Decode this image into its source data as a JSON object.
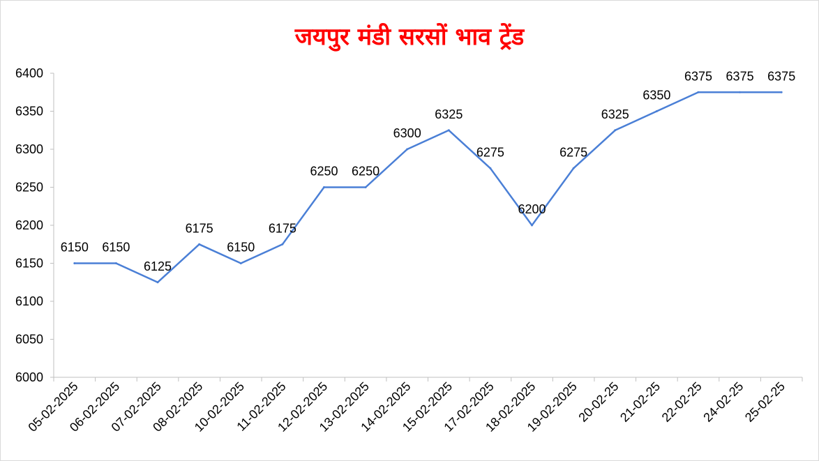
{
  "chart_data": {
    "type": "line",
    "title": "जयपुर मंडी सरसों भाव ट्रेंड",
    "xlabel": "",
    "ylabel": "",
    "ylim": [
      6000,
      6400
    ],
    "yticks": [
      6000,
      6050,
      6100,
      6150,
      6200,
      6250,
      6300,
      6350,
      6400
    ],
    "categories": [
      "05-02-2025",
      "06-02-2025",
      "07-02-2025",
      "08-02-2025",
      "10-02-2025",
      "11-02-2025",
      "12-02-2025",
      "13-02-2025",
      "14-02-2025",
      "15-02-2025",
      "17-02-2025",
      "18-02-2025",
      "19-02-2025",
      "20-02-25",
      "21-02-25",
      "22-02-25",
      "24-02-25",
      "25-02-25"
    ],
    "values": [
      6150,
      6150,
      6125,
      6175,
      6150,
      6175,
      6250,
      6250,
      6300,
      6325,
      6275,
      6200,
      6275,
      6325,
      6350,
      6375,
      6375,
      6375
    ],
    "data_labels": true,
    "grid": false,
    "legend": "none",
    "line_color": "#4a7fd6",
    "title_color": "#ff0000"
  }
}
